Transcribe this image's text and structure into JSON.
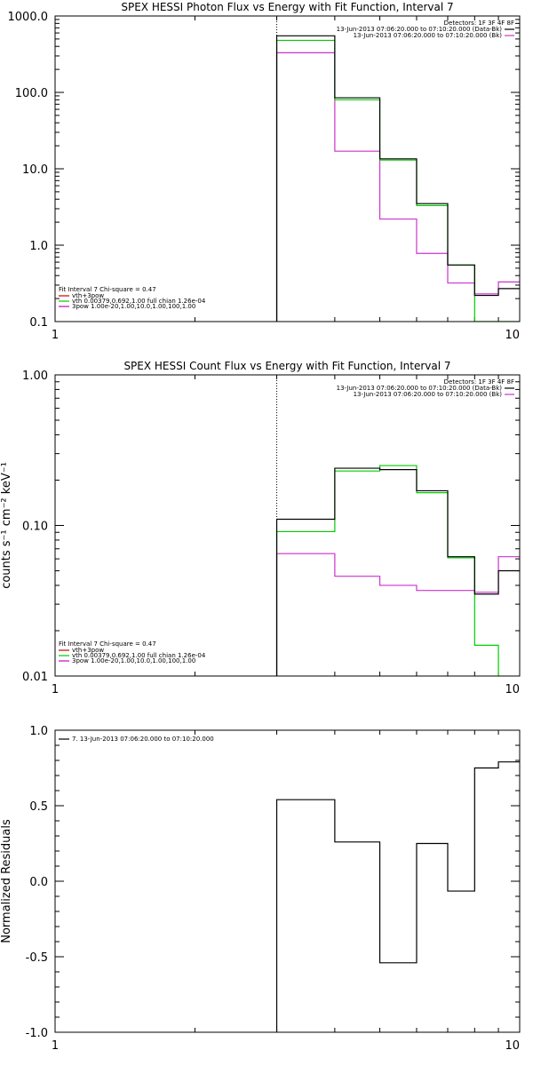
{
  "chart_data": [
    {
      "type": "line",
      "title": "SPEX HESSI Photon Flux vs Energy with Fit Function, Interval 7",
      "ylabel": "",
      "xlabel": "",
      "x_scale": "log",
      "y_scale": "log",
      "xlim": [
        1,
        10
      ],
      "ylim": [
        0.1,
        1000
      ],
      "x_ticks": [
        {
          "v": 1,
          "label": "1"
        },
        {
          "v": 10,
          "label": "10"
        }
      ],
      "y_ticks": [
        {
          "v": 0.1,
          "label": "0.1"
        },
        {
          "v": 1,
          "label": "1.0"
        },
        {
          "v": 10,
          "label": "10.0"
        },
        {
          "v": 100,
          "label": "100.0"
        },
        {
          "v": 1000,
          "label": "1000.0"
        }
      ],
      "dotted_vline_x": 3,
      "legend_right": {
        "header": "Detectors: 1F 3F 4F 8F",
        "entries": [
          {
            "label": "13-Jun-2013 07:06:20.000 to 07:10:20.000 (Data-Bk)",
            "color": "#000000"
          },
          {
            "label": "13-Jun-2013 07:06:20.000 to 07:10:20.000 (Bk)",
            "color": "#cc33cc"
          }
        ]
      },
      "legend_left": {
        "header": "Fit Interval 7   Chi-square = 0.47",
        "entries": [
          {
            "label": "vth+3pow",
            "color": "#cc0000"
          },
          {
            "label": "vth 0.00379,0.692,1.00  full chian 1.26e-04",
            "color": "#00cc00"
          },
          {
            "label": "3pow 1.00e-20,1.00,10.0,1.00,100,1.00",
            "color": "#cc00cc"
          }
        ]
      },
      "edges": [
        3,
        4,
        5,
        6,
        7,
        8,
        9,
        10
      ],
      "series": [
        {
          "color": "#000000",
          "values": [
            550,
            85,
            13.5,
            3.5,
            0.55,
            0.22,
            0.27
          ]
        },
        {
          "color": "#00cc00",
          "values": [
            480,
            80,
            13,
            3.3,
            0.55,
            0.1,
            0.1
          ]
        },
        {
          "color": "#cc33cc",
          "values": [
            330,
            17,
            2.2,
            0.78,
            0.32,
            0.23,
            0.33
          ]
        }
      ]
    },
    {
      "type": "line",
      "title": "SPEX HESSI Count Flux vs Energy with Fit Function, Interval 7",
      "ylabel": "counts s⁻¹ cm⁻² keV⁻¹",
      "xlabel": "",
      "x_scale": "log",
      "y_scale": "log",
      "xlim": [
        1,
        10
      ],
      "ylim": [
        0.01,
        1
      ],
      "x_ticks": [
        {
          "v": 1,
          "label": "1"
        },
        {
          "v": 10,
          "label": "10"
        }
      ],
      "y_ticks": [
        {
          "v": 0.01,
          "label": "0.01"
        },
        {
          "v": 0.1,
          "label": "0.10"
        },
        {
          "v": 1,
          "label": "1.00"
        }
      ],
      "dotted_vline_x": 3,
      "legend_right": {
        "header": "Detectors: 1F 3F 4F 8F",
        "entries": [
          {
            "label": "13-Jun-2013 07:06:20.000 to 07:10:20.000 (Data-Bk)",
            "color": "#000000"
          },
          {
            "label": "13-Jun-2013 07:06:20.000 to 07:10:20.000 (Bk)",
            "color": "#cc33cc"
          }
        ]
      },
      "legend_left": {
        "header": "Fit Interval 7   Chi-square = 0.47",
        "entries": [
          {
            "label": "vth+3pow",
            "color": "#cc0000"
          },
          {
            "label": "vth 0.00379,0.692,1.00  full chian 1.26e-04",
            "color": "#00cc00"
          },
          {
            "label": "3pow 1.00e-20,1.00,10.0,1.00,100,1.00",
            "color": "#cc00cc"
          }
        ]
      },
      "edges": [
        3,
        4,
        5,
        6,
        7,
        8,
        9,
        10
      ],
      "series": [
        {
          "color": "#000000",
          "values": [
            0.11,
            0.24,
            0.235,
            0.17,
            0.062,
            0.035,
            0.05
          ]
        },
        {
          "color": "#00cc00",
          "values": [
            0.091,
            0.23,
            0.25,
            0.165,
            0.061,
            0.016,
            0.0085
          ]
        },
        {
          "color": "#cc33cc",
          "values": [
            0.065,
            0.046,
            0.04,
            0.037,
            0.037,
            0.036,
            0.062
          ]
        }
      ]
    },
    {
      "type": "line",
      "title": "",
      "ylabel": "Normalized Residuals",
      "xlabel": "",
      "x_scale": "log",
      "y_scale": "linear",
      "xlim": [
        1,
        10
      ],
      "ylim": [
        -1,
        1
      ],
      "x_ticks": [
        {
          "v": 1,
          "label": "1"
        },
        {
          "v": 10,
          "label": "10"
        }
      ],
      "y_ticks": [
        {
          "v": -1,
          "label": "-1.0"
        },
        {
          "v": -0.5,
          "label": "-0.5"
        },
        {
          "v": 0,
          "label": "0.0"
        },
        {
          "v": 0.5,
          "label": "0.5"
        },
        {
          "v": 1,
          "label": "1.0"
        }
      ],
      "legend_left": {
        "header": "",
        "entries": [
          {
            "label": "7. 13-Jun-2013 07:06:20.000 to 07:10:20.000",
            "color": "#000000"
          }
        ]
      },
      "edges": [
        3,
        4,
        5,
        6,
        7,
        8,
        9,
        10
      ],
      "series": [
        {
          "color": "#000000",
          "values": [
            0.54,
            0.26,
            -0.54,
            0.25,
            -0.065,
            0.75,
            0.79
          ]
        }
      ]
    }
  ]
}
